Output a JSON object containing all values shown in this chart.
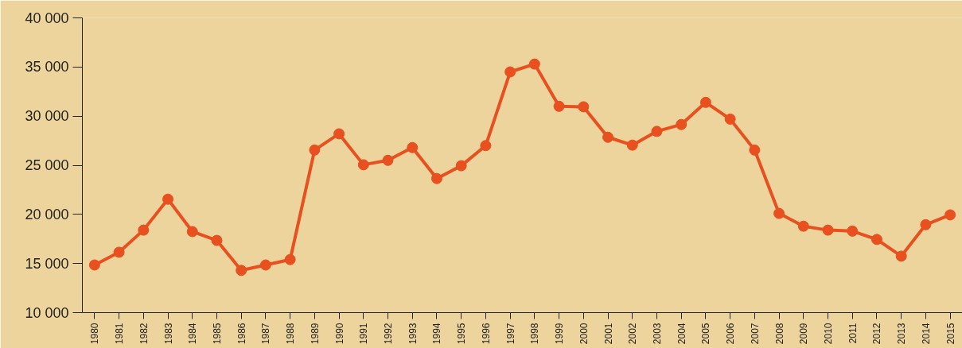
{
  "chart_data": {
    "type": "line",
    "categories": [
      "1980",
      "1981",
      "1982",
      "1983",
      "1984",
      "1985",
      "1986",
      "1987",
      "1988",
      "1989",
      "1990",
      "1991",
      "1992",
      "1993",
      "1994",
      "1995",
      "1996",
      "1997",
      "1998",
      "1999",
      "2000",
      "2001",
      "2002",
      "2003",
      "2004",
      "2005",
      "2006",
      "2007",
      "2008",
      "2009",
      "2010",
      "2011",
      "2012",
      "2013",
      "2014",
      "2015"
    ],
    "series": [
      {
        "color": "#e8501f",
        "values": [
          14850,
          16150,
          18400,
          21550,
          18250,
          17350,
          14300,
          14850,
          15400,
          26550,
          28200,
          25050,
          25500,
          26800,
          23650,
          24950,
          27000,
          34500,
          35300,
          31000,
          30950,
          27850,
          27050,
          28450,
          29150,
          31400,
          29700,
          26550,
          20100,
          18800,
          18400,
          18300,
          17450,
          15750,
          18950,
          19950
        ]
      }
    ],
    "ylim": [
      10000,
      40000
    ],
    "yticks": [
      {
        "value": 10000,
        "label": "10 000"
      },
      {
        "value": 15000,
        "label": "15 000"
      },
      {
        "value": 20000,
        "label": "20 000"
      },
      {
        "value": 25000,
        "label": "25 000"
      },
      {
        "value": 30000,
        "label": "30 000"
      },
      {
        "value": 35000,
        "label": "35 000"
      },
      {
        "value": 40000,
        "label": "40 000"
      }
    ],
    "grid": false,
    "marker": "circle",
    "line_style": "solid"
  }
}
